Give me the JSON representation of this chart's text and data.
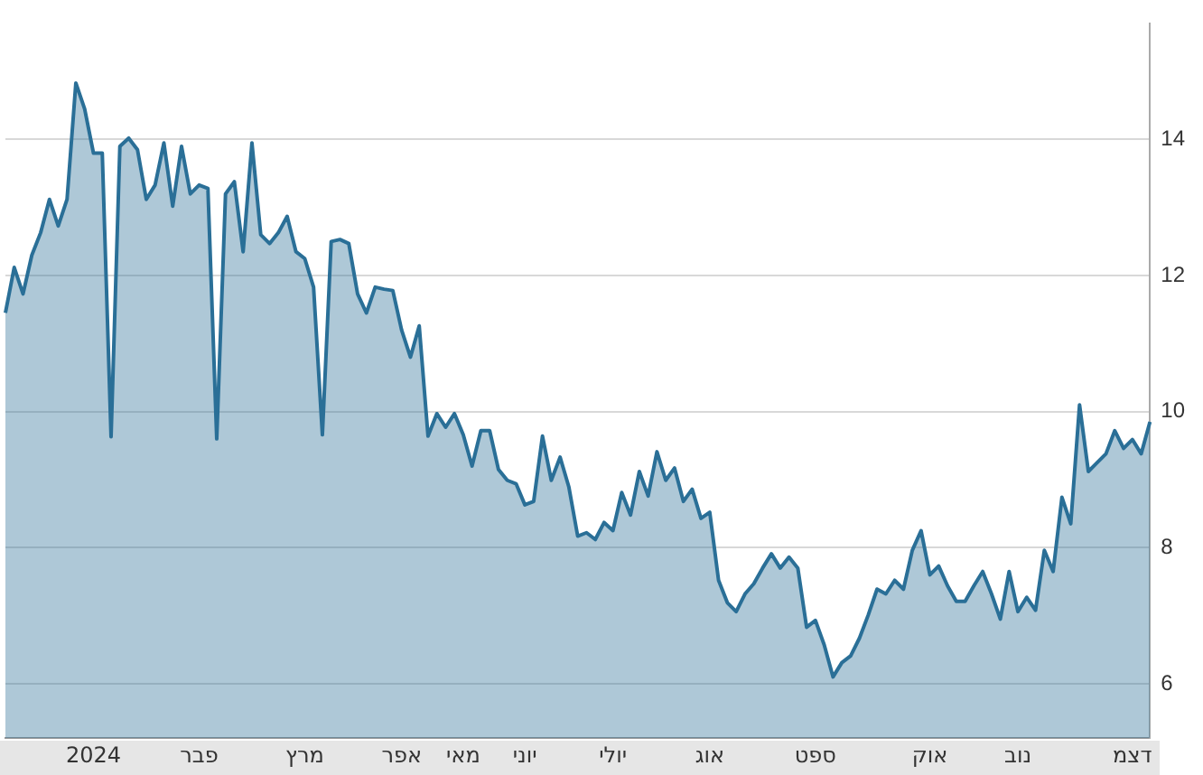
{
  "chart_data": {
    "type": "area",
    "categories": [
      null,
      null,
      null,
      null,
      null,
      null,
      null,
      null,
      null,
      null,
      "2024",
      null,
      null,
      null,
      null,
      null,
      null,
      null,
      null,
      null,
      null,
      null,
      "פבר",
      null,
      null,
      null,
      null,
      null,
      null,
      null,
      null,
      null,
      null,
      null,
      "מרץ",
      null,
      null,
      null,
      null,
      null,
      null,
      null,
      null,
      null,
      null,
      "אפר",
      null,
      null,
      null,
      null,
      null,
      null,
      "מאי",
      null,
      null,
      null,
      null,
      null,
      null,
      "יוני",
      null,
      null,
      null,
      null,
      null,
      null,
      null,
      null,
      null,
      "יולי",
      null,
      null,
      null,
      null,
      null,
      null,
      null,
      null,
      null,
      null,
      "אוג",
      null,
      null,
      null,
      null,
      null,
      null,
      null,
      null,
      null,
      null,
      null,
      "ספט",
      null,
      null,
      null,
      null,
      null,
      null,
      null,
      null,
      null,
      null,
      null,
      null,
      "אוק",
      null,
      null,
      null,
      null,
      null,
      null,
      null,
      null,
      null,
      "נוב",
      null,
      null,
      null,
      null,
      null,
      null,
      null,
      null,
      null,
      null,
      null,
      null,
      "דצמ",
      null,
      null
    ],
    "series": [
      {
        "color": "#2a6f97",
        "values": [
          11.45,
          12.12,
          11.73,
          12.3,
          12.63,
          13.12,
          12.73,
          13.12,
          14.83,
          14.45,
          13.8,
          13.8,
          9.63,
          13.9,
          14.02,
          13.85,
          13.12,
          13.33,
          13.95,
          13.02,
          13.9,
          13.2,
          13.33,
          13.28,
          9.6,
          13.2,
          13.38,
          12.35,
          13.95,
          12.6,
          12.47,
          12.63,
          12.87,
          12.35,
          12.25,
          11.83,
          9.66,
          12.5,
          12.53,
          12.47,
          11.73,
          11.45,
          11.83,
          11.8,
          11.78,
          11.2,
          10.8,
          11.26,
          9.64,
          9.97,
          9.77,
          9.97,
          9.66,
          9.2,
          9.72,
          9.72,
          9.15,
          8.99,
          8.94,
          8.63,
          8.68,
          9.64,
          8.99,
          9.33,
          8.89,
          8.17,
          8.22,
          8.12,
          8.37,
          8.25,
          8.81,
          8.48,
          9.12,
          8.76,
          9.41,
          8.99,
          9.17,
          8.68,
          8.86,
          8.43,
          8.52,
          7.52,
          7.19,
          7.06,
          7.32,
          7.47,
          7.7,
          7.91,
          7.7,
          7.86,
          7.7,
          6.83,
          6.93,
          6.57,
          6.1,
          6.31,
          6.41,
          6.67,
          7.01,
          7.39,
          7.32,
          7.52,
          7.39,
          7.96,
          8.25,
          7.6,
          7.73,
          7.44,
          7.21,
          7.21,
          7.44,
          7.65,
          7.32,
          6.95,
          7.65,
          7.06,
          7.27,
          7.08,
          7.96,
          7.65,
          8.74,
          8.35,
          10.1,
          9.12,
          9.25,
          9.38,
          9.72,
          9.46,
          9.59,
          9.38,
          9.85
        ]
      }
    ],
    "ylim": [
      5.2,
      15.7
    ],
    "yticks": [
      6,
      8,
      10,
      12,
      14
    ],
    "grid": "y",
    "legend": false,
    "marker": "none",
    "line_style": "solid"
  }
}
